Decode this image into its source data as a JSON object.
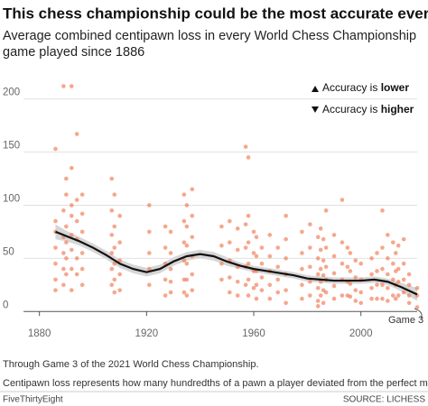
{
  "chart_data": {
    "type": "scatter",
    "title": "This chess championship could be the most accurate ever",
    "subtitle": [
      "Average combined centipawn loss in every World Chess Championship",
      "game played since 1886"
    ],
    "xlim": [
      1870,
      2021
    ],
    "ylim": [
      -10,
      215
    ],
    "xticks": [
      1880,
      1920,
      1960,
      2000
    ],
    "yticks": [
      0,
      50,
      100,
      150,
      200
    ],
    "grid": true,
    "color": "#f07850",
    "x": [
      1886,
      1886,
      1886,
      1886,
      1886,
      1886,
      1886,
      1889,
      1889,
      1889,
      1889,
      1889,
      1889,
      1890,
      1890,
      1890,
      1890,
      1890,
      1890,
      1892,
      1892,
      1892,
      1892,
      1892,
      1892,
      1892,
      1892,
      1894,
      1894,
      1894,
      1894,
      1894,
      1894,
      1896,
      1896,
      1896,
      1896,
      1896,
      1896,
      1907,
      1907,
      1907,
      1907,
      1907,
      1907,
      1908,
      1908,
      1908,
      1908,
      1908,
      1908,
      1910,
      1910,
      1910,
      1910,
      1910,
      1921,
      1921,
      1921,
      1921,
      1921,
      1927,
      1927,
      1927,
      1927,
      1927,
      1929,
      1929,
      1929,
      1929,
      1929,
      1934,
      1934,
      1934,
      1934,
      1934,
      1934,
      1935,
      1935,
      1935,
      1935,
      1935,
      1935,
      1937,
      1937,
      1937,
      1937,
      1937,
      1937,
      1948,
      1948,
      1948,
      1948,
      1951,
      1951,
      1951,
      1951,
      1951,
      1954,
      1954,
      1954,
      1954,
      1954,
      1957,
      1957,
      1957,
      1957,
      1957,
      1958,
      1958,
      1958,
      1958,
      1958,
      1958,
      1960,
      1960,
      1960,
      1960,
      1961,
      1961,
      1961,
      1961,
      1961,
      1963,
      1963,
      1963,
      1963,
      1966,
      1966,
      1966,
      1966,
      1966,
      1969,
      1969,
      1969,
      1969,
      1972,
      1972,
      1972,
      1972,
      1972,
      1972,
      1978,
      1978,
      1978,
      1978,
      1978,
      1981,
      1981,
      1981,
      1981,
      1981,
      1984,
      1984,
      1984,
      1984,
      1984,
      1984,
      1985,
      1985,
      1985,
      1985,
      1985,
      1986,
      1986,
      1986,
      1986,
      1986,
      1987,
      1987,
      1987,
      1987,
      1987,
      1990,
      1990,
      1990,
      1990,
      1990,
      1993,
      1993,
      1993,
      1993,
      1993,
      1995,
      1995,
      1995,
      1995,
      1996,
      1996,
      1996,
      1996,
      1998,
      1998,
      1998,
      1998,
      2000,
      2000,
      2000,
      2000,
      2004,
      2004,
      2004,
      2004,
      2006,
      2006,
      2006,
      2006,
      2008,
      2008,
      2008,
      2008,
      2008,
      2010,
      2010,
      2010,
      2010,
      2010,
      2012,
      2012,
      2012,
      2012,
      2013,
      2013,
      2013,
      2013,
      2014,
      2014,
      2014,
      2014,
      2016,
      2016,
      2016,
      2016,
      2018,
      2018,
      2018,
      2018,
      2021,
      2021,
      2021
    ],
    "values": [
      153,
      85,
      75,
      60,
      45,
      30,
      20,
      212,
      95,
      70,
      55,
      40,
      25,
      125,
      110,
      80,
      65,
      50,
      35,
      212,
      135,
      100,
      90,
      72,
      58,
      40,
      20,
      167,
      105,
      85,
      68,
      50,
      35,
      110,
      92,
      75,
      55,
      40,
      25,
      125,
      95,
      72,
      55,
      40,
      25,
      110,
      80,
      60,
      45,
      30,
      18,
      90,
      65,
      48,
      35,
      20,
      100,
      75,
      55,
      40,
      25,
      80,
      60,
      45,
      30,
      15,
      75,
      55,
      40,
      28,
      18,
      110,
      85,
      65,
      48,
      30,
      18,
      100,
      80,
      62,
      45,
      30,
      15,
      115,
      90,
      70,
      52,
      35,
      20,
      80,
      62,
      45,
      30,
      85,
      65,
      48,
      32,
      18,
      78,
      58,
      42,
      28,
      15,
      155,
      82,
      60,
      42,
      25,
      145,
      90,
      65,
      45,
      30,
      15,
      75,
      55,
      38,
      22,
      70,
      52,
      38,
      25,
      12,
      60,
      45,
      32,
      20,
      72,
      52,
      38,
      25,
      12,
      60,
      42,
      30,
      18,
      90,
      68,
      50,
      35,
      20,
      8,
      75,
      55,
      40,
      25,
      12,
      82,
      60,
      42,
      28,
      15,
      70,
      50,
      35,
      22,
      10,
      5,
      78,
      58,
      40,
      28,
      15,
      68,
      48,
      34,
      20,
      8,
      95,
      60,
      42,
      30,
      18,
      72,
      52,
      36,
      24,
      12,
      105,
      65,
      45,
      30,
      15,
      60,
      42,
      28,
      15,
      55,
      38,
      26,
      14,
      48,
      32,
      20,
      10,
      45,
      30,
      18,
      8,
      50,
      35,
      22,
      12,
      55,
      38,
      25,
      12,
      95,
      60,
      40,
      25,
      12,
      72,
      50,
      35,
      22,
      10,
      65,
      45,
      30,
      15,
      55,
      38,
      25,
      12,
      62,
      40,
      28,
      15,
      68,
      45,
      30,
      18,
      35,
      25,
      15,
      8,
      22,
      15,
      4
    ],
    "trend": {
      "color": "#111111",
      "band_color": "#cccccc",
      "x": [
        1886,
        1890,
        1895,
        1900,
        1905,
        1910,
        1915,
        1920,
        1925,
        1930,
        1935,
        1940,
        1945,
        1950,
        1955,
        1960,
        1965,
        1970,
        1975,
        1980,
        1985,
        1990,
        1995,
        2000,
        2005,
        2010,
        2015,
        2021
      ],
      "values": [
        75,
        71,
        66,
        60,
        53,
        45,
        40,
        37,
        40,
        47,
        52,
        54,
        52,
        47,
        43,
        40,
        38,
        36,
        34,
        31,
        30,
        29,
        29,
        29,
        30,
        28,
        23,
        16
      ],
      "lower": [
        68,
        66,
        62,
        56,
        49,
        41,
        36,
        33,
        36,
        43,
        48,
        50,
        48,
        43,
        40,
        37,
        35,
        33,
        31,
        28,
        27,
        26,
        26,
        26,
        27,
        25,
        19,
        10
      ],
      "upper": [
        82,
        76,
        70,
        64,
        57,
        49,
        44,
        41,
        44,
        51,
        56,
        58,
        56,
        51,
        46,
        43,
        41,
        39,
        37,
        34,
        33,
        32,
        32,
        32,
        33,
        31,
        27,
        22
      ]
    },
    "legend": [
      {
        "prefix": "Accuracy is ",
        "emphasis": "lower"
      },
      {
        "prefix": "Accuracy is ",
        "emphasis": "higher"
      }
    ],
    "annotation": "Game 3",
    "notes": [
      "Through Game 3 of the 2021 World Chess Championship.",
      "Centipawn loss represents how many hundredths of a pawn a player deviated from the perfect move."
    ],
    "footer": {
      "brand": "FiveThirtyEight",
      "source": "SOURCE: LICHESS"
    }
  }
}
